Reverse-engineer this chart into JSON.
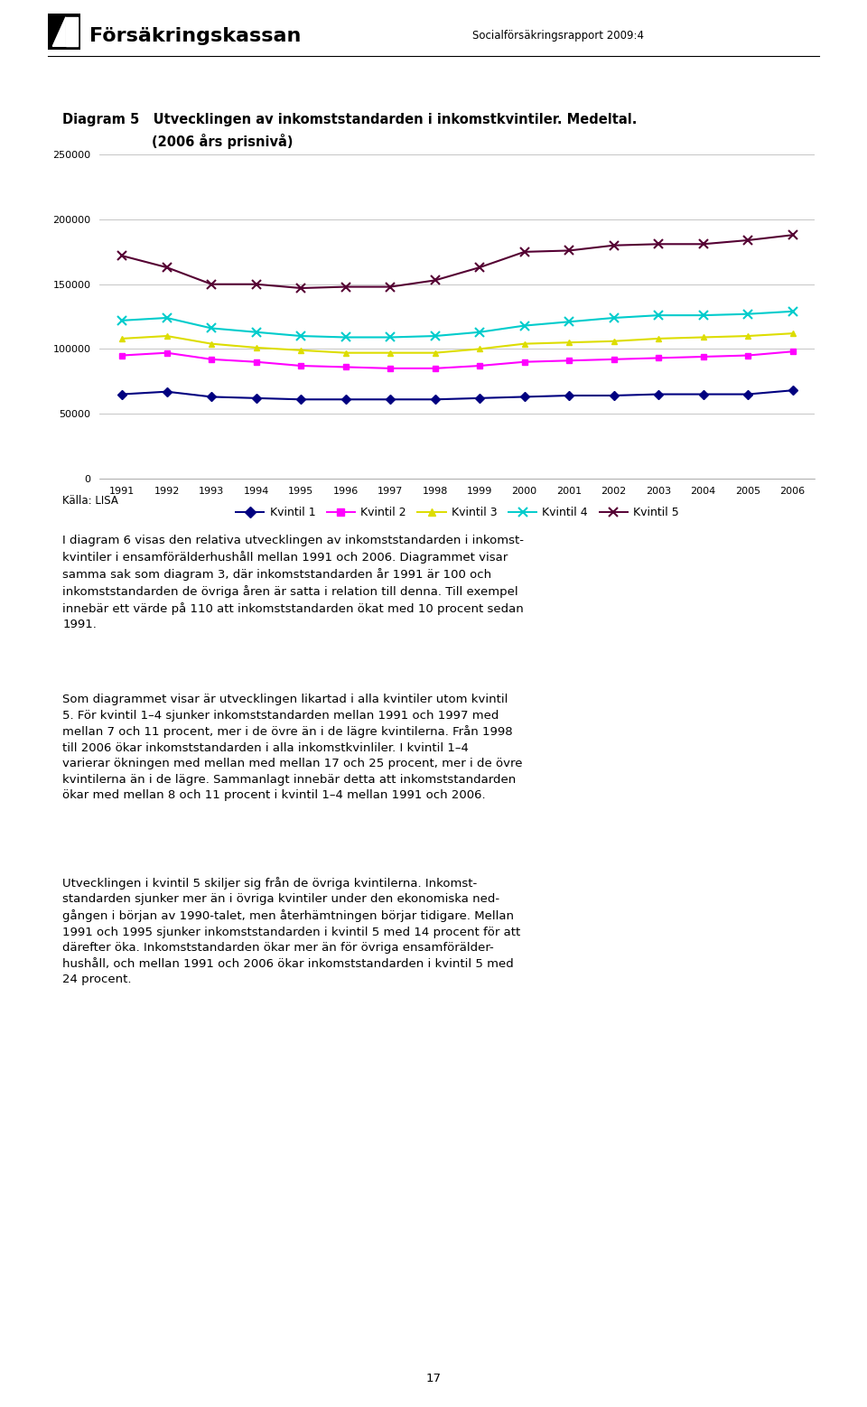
{
  "title_line1": "Diagram 5   Utvecklingen av inkomststandarden i inkomstkvintiler. Medeltal.",
  "title_line2": "(2006 års prisnivå)",
  "source": "Källa: LISA",
  "header_org": "Försäkringskassan",
  "header_report": "Socialförsäkringsrapport 2009:4",
  "page_number": "17",
  "years": [
    1991,
    1992,
    1993,
    1994,
    1995,
    1996,
    1997,
    1998,
    1999,
    2000,
    2001,
    2002,
    2003,
    2004,
    2005,
    2006
  ],
  "kvintil1": [
    65000,
    67000,
    63000,
    62000,
    61000,
    61000,
    61000,
    61000,
    62000,
    63000,
    64000,
    64000,
    65000,
    65000,
    65000,
    68000
  ],
  "kvintil2": [
    95000,
    97000,
    92000,
    90000,
    87000,
    86000,
    85000,
    85000,
    87000,
    90000,
    91000,
    92000,
    93000,
    94000,
    95000,
    98000
  ],
  "kvintil3": [
    108000,
    110000,
    104000,
    101000,
    99000,
    97000,
    97000,
    97000,
    100000,
    104000,
    105000,
    106000,
    108000,
    109000,
    110000,
    112000
  ],
  "kvintil4": [
    122000,
    124000,
    116000,
    113000,
    110000,
    109000,
    109000,
    110000,
    113000,
    118000,
    121000,
    124000,
    126000,
    126000,
    127000,
    129000
  ],
  "kvintil5": [
    172000,
    163000,
    150000,
    150000,
    147000,
    148000,
    148000,
    153000,
    163000,
    175000,
    176000,
    180000,
    181000,
    181000,
    184000,
    188000
  ],
  "colors": {
    "kvintil1": "#000080",
    "kvintil2": "#FF00FF",
    "kvintil3": "#DDDD00",
    "kvintil4": "#00CCCC",
    "kvintil5": "#550033"
  },
  "ylim": [
    0,
    250000
  ],
  "yticks": [
    0,
    50000,
    100000,
    150000,
    200000,
    250000
  ],
  "legend_labels": [
    "Kvintil 1",
    "Kvintil 2",
    "Kvintil 3",
    "Kvintil 4",
    "Kvintil 5"
  ],
  "para1": "I diagram 6 visas den relativa utvecklingen av inkomststandarden i inkomst-\nkvintiler i ensamförälderhushåll mellan 1991 och 2006. Diagrammet visar\nsamma sak som diagram 3, där inkomststandarden år 1991 är 100 och\ninkomststandarden de övriga åren är satta i relation till denna. Till exempel\ninnebär ett värde på 110 att inkomststandarden ökat med 10 procent sedan\n1991.",
  "para2": "Som diagrammet visar är utvecklingen likartad i alla kvintiler utom kvintil\n5. För kvintil 1–4 sjunker inkomststandarden mellan 1991 och 1997 med\nmellan 7 och 11 procent, mer i de övre än i de lägre kvintilerna. Från 1998\ntill 2006 ökar inkomststandarden i alla inkomstkvinliler. I kvintil 1–4\nvarierar ökningen med mellan med mellan 17 och 25 procent, mer i de övre\nkvintilerna än i de lägre. Sammanlagt innebär detta att inkomststandarden\nökar med mellan 8 och 11 procent i kvintil 1–4 mellan 1991 och 2006.",
  "para3": "Utvecklingen i kvintil 5 skiljer sig från de övriga kvintilerna. Inkomst-\nstandarden sjunker mer än i övriga kvintiler under den ekonomiska ned-\ngången i början av 1990-talet, men återhämtningen börjar tidigare. Mellan\n1991 och 1995 sjunker inkomststandarden i kvintil 5 med 14 procent för att\ndärefter öka. Inkomststandarden ökar mer än för övriga ensamförälder-\nhushåll, och mellan 1991 och 2006 ökar inkomststandarden i kvintil 5 med\n24 procent."
}
